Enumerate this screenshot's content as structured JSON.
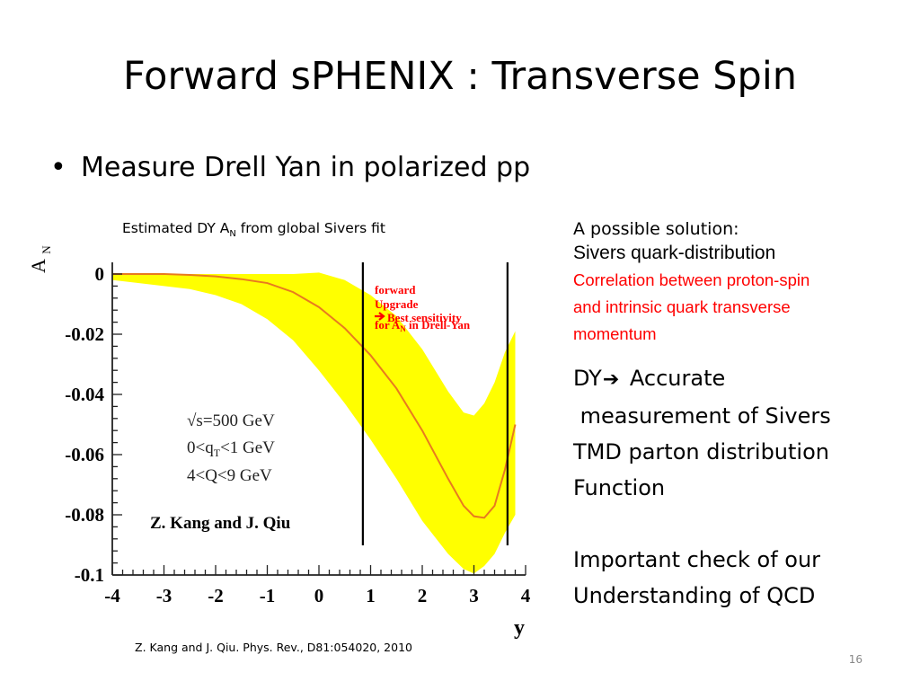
{
  "title": "Forward sPHENIX : Transverse Spin",
  "bullet": "Measure Drell Yan in polarized pp",
  "figure_caption": {
    "pre": "Estimated DY A",
    "sub": "N",
    "post": " from global Sivers fit"
  },
  "citation": "Z. Kang and J. Qiu. Phys. Rev., D81:054020, 2010",
  "side": {
    "line1": "A possible solution:",
    "line2": "Sivers quark-distribution",
    "red": [
      "Correlation between proton-spin",
      "and intrinsic quark transverse",
      "momentum"
    ],
    "dy": {
      "pre": "DY",
      "post": " Accurate"
    },
    "body": [
      " measurement of Sivers",
      "TMD parton distribution",
      "Function"
    ],
    "important": [
      "Important check of our",
      "Understanding of QCD"
    ]
  },
  "page_number": "16",
  "colors": {
    "band": "#ffff00",
    "curve": "#e87a1f",
    "annotation": "#ff0000"
  },
  "chart_data": {
    "type": "line",
    "ylabel_main": "A",
    "ylabel_sub": "N",
    "xlabel": "y",
    "xlim": [
      -4,
      4
    ],
    "ylim": [
      -0.1,
      0.0
    ],
    "x_ticks": [
      -4,
      -3,
      -2,
      -1,
      0,
      1,
      2,
      3,
      4
    ],
    "x_tick_labels": [
      "-4",
      "-3",
      "-2",
      "-1",
      "0",
      "1",
      "2",
      "3",
      "4"
    ],
    "y_ticks": [
      0,
      -0.02,
      -0.04,
      -0.06,
      -0.08,
      -0.1
    ],
    "y_tick_labels": [
      "0",
      "-0.02",
      "-0.04",
      "-0.06",
      "-0.08",
      "-0.1"
    ],
    "series": [
      {
        "kind": "central",
        "x": [
          -4,
          -3.5,
          -3,
          -2.5,
          -2,
          -1.5,
          -1,
          -0.5,
          0,
          0.5,
          1,
          1.5,
          2,
          2.5,
          2.8,
          3.0,
          3.2,
          3.4,
          3.6,
          3.8
        ],
        "y": [
          0,
          0,
          0,
          -0.0003,
          -0.0008,
          -0.0017,
          -0.003,
          -0.006,
          -0.011,
          -0.018,
          -0.027,
          -0.038,
          -0.052,
          -0.068,
          -0.077,
          -0.0805,
          -0.081,
          -0.077,
          -0.065,
          -0.05
        ]
      },
      {
        "kind": "band_upper",
        "x": [
          -4,
          -3.5,
          -3,
          -2.5,
          -2,
          -1.5,
          -1,
          -0.5,
          0,
          0.5,
          1,
          1.5,
          2,
          2.5,
          2.8,
          3.0,
          3.2,
          3.4,
          3.6,
          3.8
        ],
        "y": [
          0,
          0,
          0,
          0,
          0,
          0,
          0,
          0,
          0.0005,
          -0.002,
          -0.007,
          -0.014,
          -0.025,
          -0.039,
          -0.046,
          -0.047,
          -0.043,
          -0.036,
          -0.026,
          -0.019
        ]
      },
      {
        "kind": "band_lower",
        "x": [
          -4,
          -3.5,
          -3,
          -2.5,
          -2,
          -1.5,
          -1,
          -0.5,
          0,
          0.5,
          1,
          1.5,
          2,
          2.5,
          2.8,
          3.0,
          3.2,
          3.4,
          3.6,
          3.8
        ],
        "y": [
          -0.002,
          -0.003,
          -0.004,
          -0.005,
          -0.007,
          -0.01,
          -0.015,
          -0.022,
          -0.032,
          -0.043,
          -0.055,
          -0.068,
          -0.082,
          -0.093,
          -0.098,
          -0.0995,
          -0.097,
          -0.093,
          -0.086,
          -0.08
        ]
      }
    ],
    "vertical_lines_x": [
      0.85,
      3.65
    ],
    "annotation": {
      "line1": "forward",
      "line2": "Upgrade",
      "line3": "Best sensitivity",
      "line4_pre": "for A",
      "line4_sub": "N",
      "line4_post": " in Drell-Yan"
    },
    "kinematics": [
      "√s=500 GeV",
      "0<q",
      "T",
      "<1 GeV",
      "4<Q<9 GeV"
    ],
    "credit": "Z. Kang and J. Qiu"
  }
}
